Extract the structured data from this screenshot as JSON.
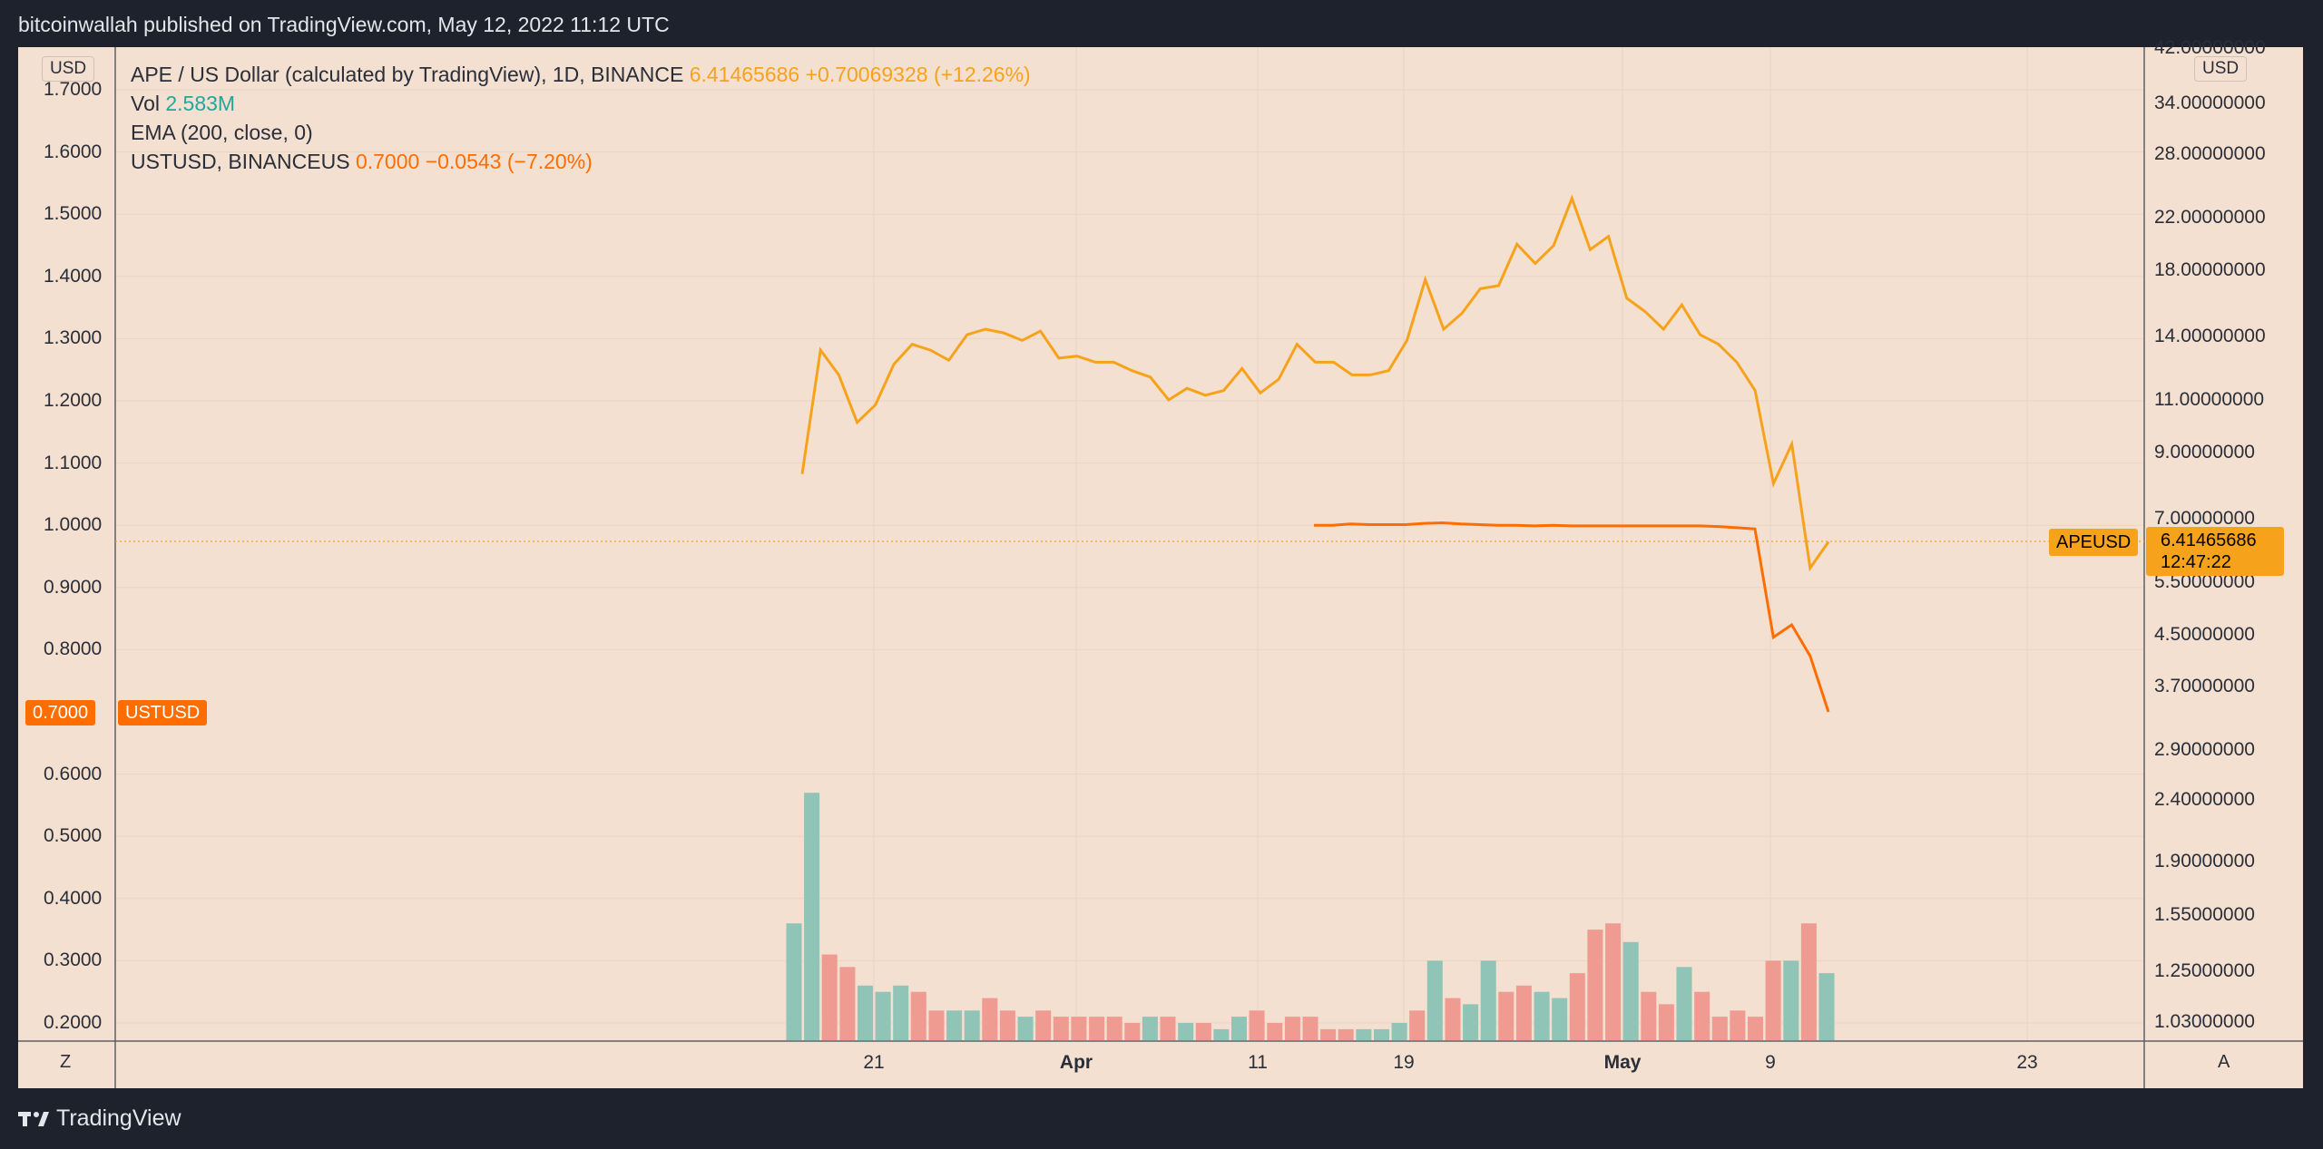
{
  "header": {
    "attribution": "bitcoinwallah published on TradingView.com, May 12, 2022 11:12 UTC"
  },
  "footer": {
    "brand": "TradingView",
    "logo": "tradingview-logo"
  },
  "legend": {
    "main_symbol": "APE / US Dollar (calculated by TradingView), 1D, BINANCE",
    "main_price": "6.41465686",
    "main_change": "+0.70069328 (+12.26%)",
    "vol_label": "Vol",
    "vol_value": "2.583M",
    "ema": "EMA (200, close, 0)",
    "ust_symbol": "USTUSD, BINANCEUS",
    "ust_price": "0.7000",
    "ust_change": "−0.0543 (−7.20%)"
  },
  "axes": {
    "left_unit": "USD",
    "right_unit": "USD",
    "left_ticks": [
      "1.7000",
      "1.6000",
      "1.5000",
      "1.4000",
      "1.3000",
      "1.2000",
      "1.1000",
      "1.0000",
      "0.9000",
      "0.8000",
      "0.6000",
      "0.5000",
      "0.4000",
      "0.3000",
      "0.2000"
    ],
    "right_ticks": [
      "42.00000000",
      "34.00000000",
      "28.00000000",
      "22.00000000",
      "18.00000000",
      "14.00000000",
      "11.00000000",
      "9.00000000",
      "7.00000000",
      "5.50000000",
      "4.50000000",
      "3.70000000",
      "2.90000000",
      "2.40000000",
      "1.90000000",
      "1.55000000",
      "1.25000000",
      "1.03000000"
    ],
    "x_ticks": [
      "21",
      "Apr",
      "11",
      "19",
      "May",
      "9",
      "23"
    ],
    "z_button": "Z",
    "a_button": "A"
  },
  "tags": {
    "ust_price": "0.7000",
    "ust_label": "USTUSD",
    "ape_label": "APEUSD",
    "ape_price": "6.41465686",
    "ape_countdown": "12:47:22"
  },
  "colors": {
    "ape_line": "#f7a21b",
    "ust_line": "#ff6d00",
    "vol_up": "#8fc4b7",
    "vol_down": "#ef9b92",
    "background": "#f3e0d0"
  },
  "chart_data": {
    "type": "line",
    "series": [
      {
        "name": "APE / US Dollar (calculated by TradingView), 1D, BINANCE",
        "axis": "right",
        "values": [
          8.3,
          13.3,
          12.1,
          10.1,
          10.8,
          12.6,
          13.6,
          13.3,
          12.8,
          14.1,
          14.4,
          14.2,
          13.8,
          14.3,
          12.9,
          13.0,
          12.7,
          12.7,
          12.3,
          12.0,
          11.0,
          11.5,
          11.2,
          11.4,
          12.4,
          11.3,
          11.9,
          13.6,
          12.7,
          12.7,
          12.1,
          12.1,
          12.3,
          13.8,
          17.4,
          14.4,
          15.3,
          16.8,
          17.0,
          19.9,
          18.5,
          19.8,
          23.7,
          19.5,
          20.5,
          16.2,
          15.4,
          14.4,
          15.8,
          14.1,
          13.6,
          12.7,
          11.4,
          8.0,
          9.3,
          5.8,
          6.41
        ]
      },
      {
        "name": "USTUSD, BINANCEUS",
        "axis": "left",
        "values": [
          1.0,
          1.0,
          1.002,
          1.001,
          1.001,
          1.001,
          1.003,
          1.004,
          1.002,
          1.001,
          1.0,
          1.0,
          0.999,
          1.0,
          0.999,
          0.999,
          0.999,
          0.999,
          0.999,
          0.999,
          0.999,
          0.999,
          0.998,
          0.996,
          0.994,
          0.82,
          0.84,
          0.79,
          0.7
        ]
      },
      {
        "name": "Vol",
        "axis": "volume",
        "values": [
          0.36,
          0.57,
          0.31,
          0.29,
          0.26,
          0.25,
          0.26,
          0.25,
          0.22,
          0.22,
          0.22,
          0.24,
          0.22,
          0.21,
          0.22,
          0.21,
          0.21,
          0.21,
          0.21,
          0.2,
          0.21,
          0.21,
          0.2,
          0.2,
          0.19,
          0.21,
          0.22,
          0.2,
          0.21,
          0.21,
          0.19,
          0.19,
          0.19,
          0.19,
          0.2,
          0.22,
          0.3,
          0.24,
          0.23,
          0.3,
          0.25,
          0.26,
          0.25,
          0.24,
          0.28,
          0.35,
          0.36,
          0.33,
          0.25,
          0.23,
          0.29,
          0.25,
          0.21,
          0.22,
          0.21,
          0.3,
          0.3,
          0.36,
          0.28
        ],
        "up": [
          true,
          true,
          false,
          false,
          true,
          true,
          true,
          false,
          false,
          true,
          true,
          false,
          false,
          true,
          false,
          false,
          false,
          false,
          false,
          false,
          true,
          false,
          true,
          false,
          true,
          true,
          false,
          false,
          false,
          false,
          false,
          false,
          true,
          true,
          true,
          false,
          true,
          false,
          true,
          true,
          false,
          false,
          true,
          true,
          false,
          false,
          false,
          true,
          false,
          false,
          true,
          false,
          false,
          false,
          false,
          false,
          true,
          false,
          true
        ]
      }
    ],
    "ylim_left": [
      0.15,
      1.75
    ],
    "ylim_right": [
      1.0,
      42.0
    ],
    "y_scale_right": "log",
    "x_range": [
      "2022-03-17",
      "2022-05-12"
    ],
    "grid": true
  }
}
